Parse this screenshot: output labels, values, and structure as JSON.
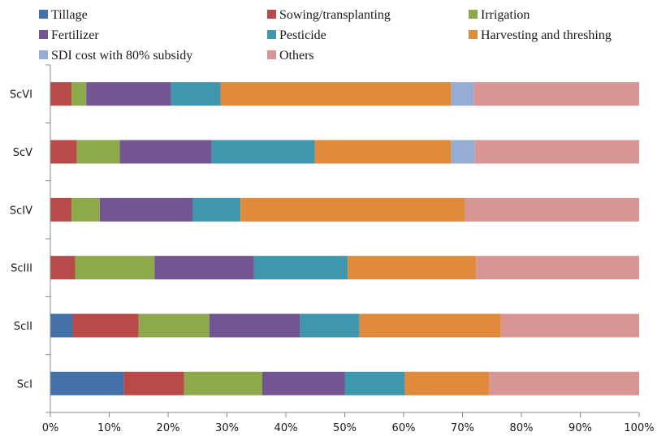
{
  "chart_data": {
    "type": "bar",
    "orientation": "horizontal",
    "stacked": "percent",
    "categories": [
      "ScI",
      "ScII",
      "ScIII",
      "ScIV",
      "ScV",
      "ScVI"
    ],
    "series": [
      {
        "name": "Tillage",
        "color": "#4472a8",
        "values": [
          12.5,
          3.8,
          0,
          0,
          0,
          0
        ]
      },
      {
        "name": "Sowing/transplanting",
        "color": "#b84a48",
        "values": [
          10.2,
          11.2,
          4.2,
          3.6,
          4.5,
          3.6
        ]
      },
      {
        "name": "Irrigation",
        "color": "#8ea84c",
        "values": [
          13.3,
          12.0,
          13.5,
          4.8,
          7.3,
          2.5
        ]
      },
      {
        "name": "Fertilizer",
        "color": "#735592",
        "values": [
          14.0,
          15.4,
          16.9,
          15.8,
          15.6,
          14.4
        ]
      },
      {
        "name": "Pesticide",
        "color": "#3f97ae",
        "values": [
          10.2,
          10.1,
          15.9,
          8.1,
          17.5,
          8.4
        ]
      },
      {
        "name": "Harvesting and threshing",
        "color": "#e08a3c",
        "values": [
          14.3,
          24.0,
          21.8,
          38.1,
          23.2,
          39.2
        ]
      },
      {
        "name": "SDI cost with 80% subsidy",
        "color": "#95acd4",
        "values": [
          0,
          0,
          0,
          0,
          4.0,
          3.8
        ]
      },
      {
        "name": "Others",
        "color": "#d99593",
        "values": [
          25.5,
          23.5,
          27.7,
          29.6,
          27.9,
          28.1
        ]
      }
    ],
    "xlim": [
      0,
      100
    ],
    "x_ticks": [
      "0%",
      "10%",
      "20%",
      "30%",
      "40%",
      "50%",
      "60%",
      "70%",
      "80%",
      "90%",
      "100%"
    ],
    "xlabel": "",
    "ylabel": "",
    "title": "",
    "legend": "top",
    "grid": false
  }
}
